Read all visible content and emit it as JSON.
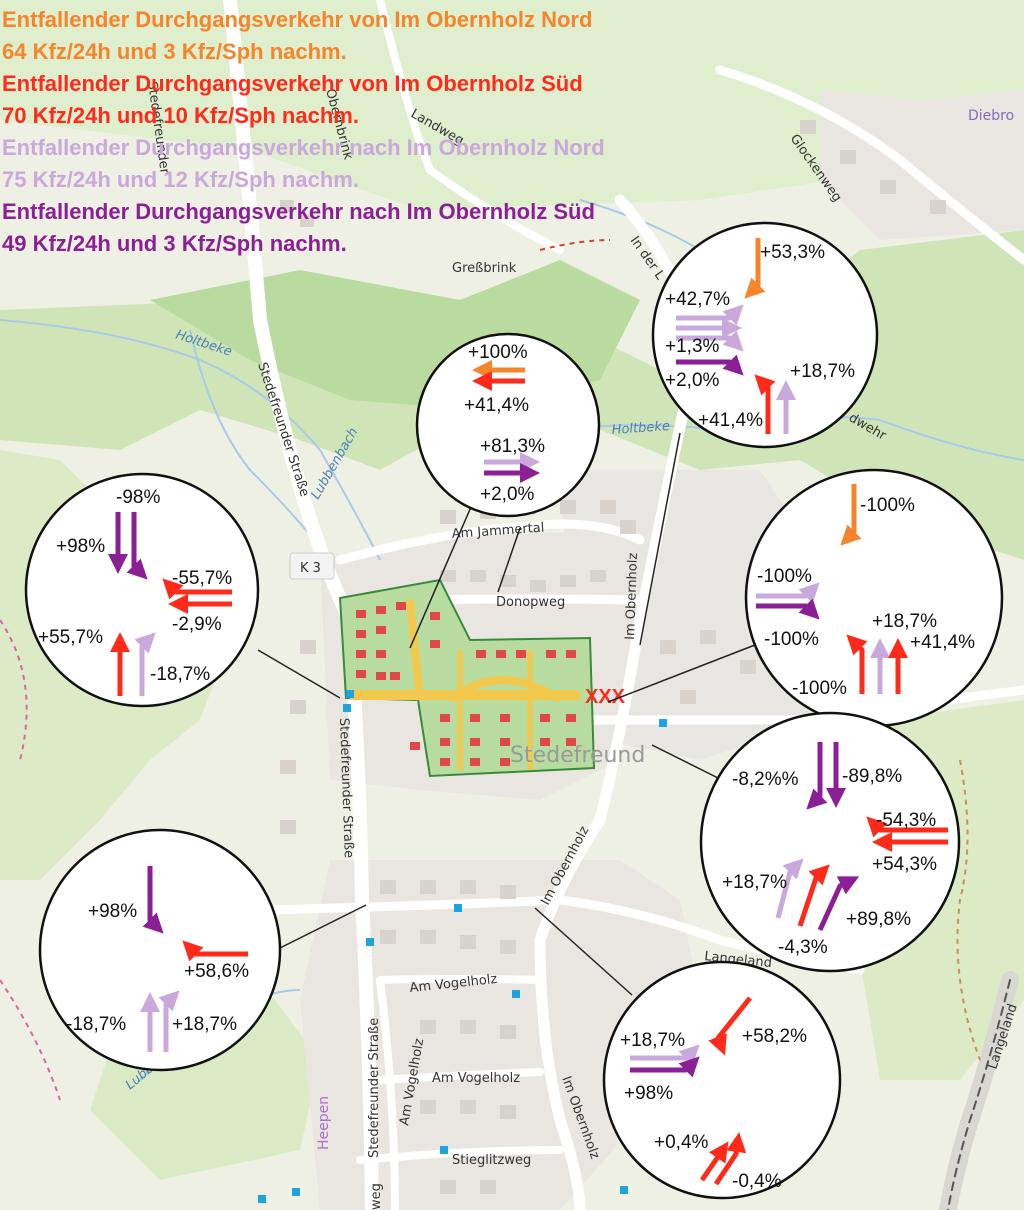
{
  "legend": [
    {
      "line1": "Entfallender Durchgangsverkehr von Im Obernholz Nord",
      "line2": "64 Kfz/24h und 3 Kfz/Sph nachm.",
      "color": "#f5842a"
    },
    {
      "line1": "Entfallender Durchgangsverkehr von Im Obernholz Süd",
      "line2": "70 Kfz/24h und 10 Kfz/Sph nachm.",
      "color": "#ff2a1a"
    },
    {
      "line1": "Entfallender Durchgangsverkehr nach Im Obernholz Nord",
      "line2": "75 Kfz/24h und 12 Kfz/Sph nachm.",
      "color": "#c9a8dc"
    },
    {
      "line1": "Entfallender Durchgangsverkehr nach Im Obernholz Süd",
      "line2": "49 Kfz/24h und 3 Kfz/Sph nachm.",
      "color": "#8b1f95"
    }
  ],
  "colors": {
    "orange": "#f5842a",
    "red": "#ff2a1a",
    "lilac": "#c9a8dc",
    "purple": "#8b1f95",
    "forest": "#cfe5b8",
    "park": "#dcebc6",
    "road": "#ffffff",
    "water": "#aac9e6"
  },
  "map_labels": {
    "gressbrink": "Greßbrink",
    "holtbeke1": "Holtbeke",
    "holtbeke2": "Holtbeke",
    "lubbenbach1": "Lubbenbach",
    "lubbenbach2": "Lubbenbach",
    "stedefreunder1": "Stedefreunder Straße",
    "stedefreunder2": "Stedefreunder Straße",
    "stedefreunder3": "Stedefreunder Straße",
    "k3": "K 3",
    "am_jammertal": "Am Jammertal",
    "donopweg": "Donopweg",
    "im_obernholz1": "Im Obernholz",
    "im_obernholz2": "Im Obernholz",
    "im_obernholz3": "Im Obernholz",
    "stedefreund": "Stedefreund",
    "am_vogelholz1": "Am Vogelholz",
    "am_vogelholz2": "Am Vogelholz",
    "am_vogelholz3": "Am Vogelholz",
    "stieglitzweg": "Stieglitzweg",
    "langeland1": "Langeland",
    "langeland2": "Langeland",
    "glockenweg": "Glockenweg",
    "in_der_l": "In der L",
    "diebrock": "Diebro",
    "heepen": "Heepen",
    "landwehr": "dwehr",
    "landweg": "Landweg",
    "stedefreunder_top": "Stedefreunder",
    "obernbrink": "Obernbrink",
    "weg": "weg",
    "xxx": "XXX"
  },
  "circles": {
    "c1": {
      "labels": [
        "+100%",
        "+41,4%",
        "+81,3%",
        "+2,0%"
      ]
    },
    "c2": {
      "labels": [
        "+53,3%",
        "+42,7%",
        "+1,3%",
        "+2,0%",
        "+18,7%",
        "+41,4%"
      ]
    },
    "c3": {
      "labels": [
        "-98%",
        "+98%",
        "-55,7%",
        "-2,9%",
        "+55,7%",
        "-18,7%"
      ]
    },
    "c4": {
      "labels": [
        "-100%",
        "-100%",
        "+18,7%",
        "+41,4%",
        "-100%",
        "-100%"
      ]
    },
    "c5": {
      "labels": [
        "-8,2%%",
        "-89,8%",
        "-54,3%",
        "+54,3%",
        "+18,7%",
        "+89,8%",
        "-4,3%"
      ]
    },
    "c6": {
      "labels": [
        "+98%",
        "+58,6%",
        "-18,7%",
        "+18,7%"
      ]
    },
    "c7": {
      "labels": [
        "+18,7%",
        "+58,2%",
        "+98%",
        "+0,4%",
        "-0,4%"
      ]
    }
  }
}
